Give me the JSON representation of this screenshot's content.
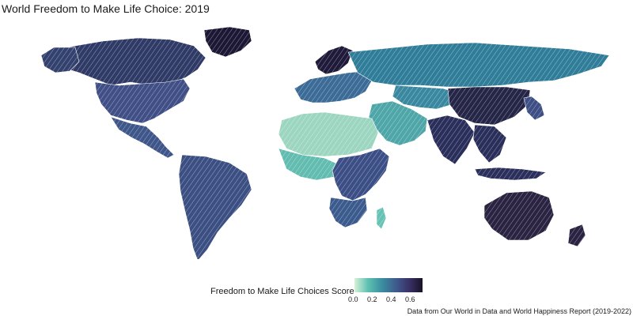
{
  "title": "World Freedom to Make Life Choice: 2019",
  "legend": {
    "title": "Freedom to Make Life Choices Score",
    "ticks": [
      "0.0",
      "0.2",
      "0.4",
      "0.6"
    ],
    "colors": [
      "#d7f0d8",
      "#5ec0b2",
      "#3a8fa0",
      "#3f5d90",
      "#3a3268",
      "#1a1226"
    ]
  },
  "caption": "Data from Our World in Data and World Happiness Report (2019-2022)",
  "map": {
    "regions": [
      {
        "name": "Canada",
        "score_level": 0.62,
        "color": "#2f3a66"
      },
      {
        "name": "Alaska",
        "score_level": 0.6,
        "color": "#33416e"
      },
      {
        "name": "Greenland",
        "score_level": 0.7,
        "color": "#1c1734"
      },
      {
        "name": "United States",
        "score_level": 0.56,
        "color": "#404f86"
      },
      {
        "name": "Mexico & Central America",
        "score_level": 0.52,
        "color": "#3e5689"
      },
      {
        "name": "South America",
        "score_level": 0.55,
        "color": "#3c4f83"
      },
      {
        "name": "Europe",
        "score_level": 0.45,
        "color": "#3b6b96"
      },
      {
        "name": "Scandinavia",
        "score_level": 0.7,
        "color": "#1f1a3a"
      },
      {
        "name": "Russia",
        "score_level": 0.38,
        "color": "#2f7d98"
      },
      {
        "name": "Central Asia",
        "score_level": 0.36,
        "color": "#3a88a0"
      },
      {
        "name": "Middle East",
        "score_level": 0.3,
        "color": "#4ea6a8"
      },
      {
        "name": "North Africa",
        "score_level": 0.15,
        "color": "#9cd6c0"
      },
      {
        "name": "West Africa",
        "score_level": 0.28,
        "color": "#62bcb0"
      },
      {
        "name": "Central & East Africa",
        "score_level": 0.5,
        "color": "#3b4f86"
      },
      {
        "name": "Southern Africa",
        "score_level": 0.48,
        "color": "#3b5b8e"
      },
      {
        "name": "Madagascar",
        "score_level": 0.25,
        "color": "#66c2b4"
      },
      {
        "name": "South Asia",
        "score_level": 0.62,
        "color": "#2a2e5a"
      },
      {
        "name": "China",
        "score_level": 0.66,
        "color": "#252547"
      },
      {
        "name": "Southeast Asia",
        "score_level": 0.62,
        "color": "#2a2e5a"
      },
      {
        "name": "Japan & Korea",
        "score_level": 0.55,
        "color": "#3d4f84"
      },
      {
        "name": "Indonesia",
        "score_level": 0.6,
        "color": "#2b2f5c"
      },
      {
        "name": "Australia",
        "score_level": 0.68,
        "color": "#2a2341"
      },
      {
        "name": "New Zealand",
        "score_level": 0.68,
        "color": "#2a2341"
      }
    ]
  }
}
